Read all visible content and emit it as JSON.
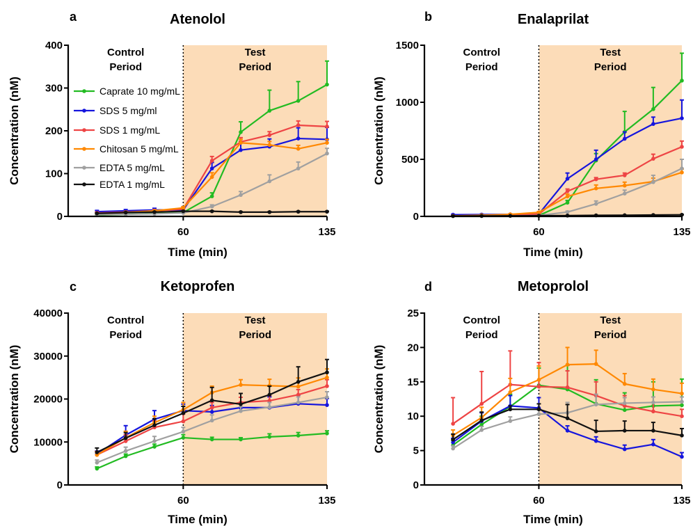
{
  "figure": {
    "x_label": "Time (min)",
    "y_label": "Concentration (nM)",
    "control_label": [
      "Control",
      "Period"
    ],
    "test_label": [
      "Test",
      "Period"
    ],
    "test_period_color": "#fcdcb8",
    "divider_x": 60
  },
  "series_styles": [
    {
      "name": "Caprate 10 mg/mL",
      "color": "#22bb22"
    },
    {
      "name": "SDS 5 mg/ml",
      "color": "#1515dd"
    },
    {
      "name": "SDS 1 mg/mL",
      "color": "#ee4444"
    },
    {
      "name": "Chitosan 5 mg/mL",
      "color": "#ff8800"
    },
    {
      "name": "EDTA 5 mg/mL",
      "color": "#a0a0a0"
    },
    {
      "name": "EDTA 1 mg/mL",
      "color": "#111111"
    }
  ],
  "chart_data": [
    {
      "type": "line",
      "letter": "a",
      "title": "Atenolol",
      "xlabel": "Time (min)",
      "ylabel": "Concentration (nM)",
      "xlim": [
        0,
        135
      ],
      "ylim": [
        0,
        400
      ],
      "x_ticks": [
        60,
        135
      ],
      "y_ticks": [
        0,
        100,
        200,
        300,
        400
      ],
      "show_legend": true,
      "legend_position": "top-left",
      "x": [
        15,
        30,
        45,
        60,
        75,
        90,
        105,
        120,
        135
      ],
      "series": [
        {
          "name": "Caprate 10 mg/mL",
          "values": [
            3,
            5,
            7,
            9,
            47,
            197,
            247,
            270,
            308
          ],
          "errors": [
            1,
            1,
            1,
            1,
            8,
            24,
            48,
            45,
            55
          ]
        },
        {
          "name": "SDS 5 mg/ml",
          "values": [
            11,
            13,
            15,
            15,
            112,
            155,
            163,
            182,
            180
          ],
          "errors": [
            3,
            3,
            4,
            4,
            14,
            20,
            18,
            25,
            28
          ]
        },
        {
          "name": "SDS 1 mg/mL",
          "values": [
            8,
            10,
            13,
            17,
            130,
            174,
            190,
            213,
            210
          ],
          "errors": [
            2,
            2,
            3,
            4,
            10,
            10,
            8,
            10,
            12
          ]
        },
        {
          "name": "Chitosan 5 mg/mL",
          "values": [
            6,
            9,
            13,
            20,
            92,
            172,
            167,
            158,
            172
          ],
          "errors": [
            1,
            2,
            2,
            3,
            10,
            8,
            8,
            8,
            8
          ]
        },
        {
          "name": "EDTA 5 mg/mL",
          "values": [
            4,
            5,
            6,
            8,
            23,
            50,
            82,
            112,
            147
          ],
          "errors": [
            1,
            1,
            1,
            1,
            4,
            8,
            15,
            15,
            12
          ]
        },
        {
          "name": "EDTA 1 mg/mL",
          "values": [
            7,
            9,
            10,
            12,
            12,
            10,
            10,
            11,
            11
          ],
          "errors": [
            1,
            1,
            1,
            1,
            1,
            1,
            1,
            1,
            1
          ]
        }
      ]
    },
    {
      "type": "line",
      "letter": "b",
      "title": "Enalaprilat",
      "xlabel": "Time (min)",
      "ylabel": "Concentration (nM)",
      "xlim": [
        0,
        135
      ],
      "ylim": [
        0,
        1500
      ],
      "x_ticks": [
        60,
        135
      ],
      "y_ticks": [
        0,
        500,
        1000,
        1500
      ],
      "show_legend": false,
      "x": [
        15,
        30,
        45,
        60,
        75,
        90,
        105,
        120,
        135
      ],
      "series": [
        {
          "name": "Caprate 10 mg/mL",
          "values": [
            3,
            4,
            6,
            8,
            120,
            490,
            740,
            940,
            1190
          ],
          "errors": [
            1,
            1,
            1,
            2,
            20,
            60,
            180,
            190,
            240
          ]
        },
        {
          "name": "SDS 5 mg/ml",
          "values": [
            15,
            16,
            18,
            20,
            330,
            500,
            680,
            810,
            860
          ],
          "errors": [
            3,
            3,
            3,
            4,
            50,
            80,
            60,
            60,
            160
          ]
        },
        {
          "name": "SDS 1 mg/mL",
          "values": [
            5,
            8,
            12,
            20,
            220,
            325,
            360,
            505,
            610
          ],
          "errors": [
            1,
            2,
            3,
            5,
            20,
            15,
            20,
            40,
            50
          ]
        },
        {
          "name": "Chitosan 5 mg/mL",
          "values": [
            5,
            10,
            18,
            35,
            175,
            245,
            270,
            305,
            385
          ],
          "errors": [
            1,
            2,
            4,
            8,
            20,
            30,
            30,
            30,
            30
          ]
        },
        {
          "name": "EDTA 5 mg/mL",
          "values": [
            2,
            3,
            5,
            8,
            38,
            110,
            200,
            300,
            420
          ],
          "errors": [
            1,
            1,
            1,
            2,
            8,
            25,
            30,
            60,
            80
          ]
        },
        {
          "name": "EDTA 1 mg/mL",
          "values": [
            3,
            4,
            5,
            6,
            7,
            9,
            10,
            12,
            14
          ],
          "errors": [
            1,
            1,
            1,
            1,
            1,
            1,
            1,
            1,
            2
          ]
        }
      ]
    },
    {
      "type": "line",
      "letter": "c",
      "title": "Ketoprofen",
      "xlabel": "Time (min)",
      "ylabel": "Concentration (nM)",
      "xlim": [
        0,
        135
      ],
      "ylim": [
        0,
        40000
      ],
      "x_ticks": [
        60,
        135
      ],
      "y_ticks": [
        0,
        10000,
        20000,
        30000,
        40000
      ],
      "show_legend": false,
      "x": [
        15,
        30,
        45,
        60,
        75,
        90,
        105,
        120,
        135
      ],
      "series": [
        {
          "name": "Caprate 10 mg/mL",
          "values": [
            3800,
            6700,
            8900,
            11000,
            10600,
            10600,
            11200,
            11500,
            12000
          ],
          "errors": [
            400,
            500,
            600,
            700,
            500,
            400,
            700,
            700,
            600
          ]
        },
        {
          "name": "SDS 5 mg/ml",
          "values": [
            7200,
            11600,
            15300,
            17300,
            17000,
            18000,
            18000,
            18900,
            18600
          ],
          "errors": [
            700,
            2200,
            2000,
            1500,
            1500,
            1200,
            2500,
            2000,
            1500
          ]
        },
        {
          "name": "SDS 1 mg/mL",
          "values": [
            7000,
            10200,
            13400,
            14800,
            18000,
            19200,
            19600,
            21000,
            23000
          ],
          "errors": [
            800,
            1500,
            1500,
            1700,
            1200,
            1200,
            1200,
            1200,
            1500
          ]
        },
        {
          "name": "Chitosan 5 mg/mL",
          "values": [
            7000,
            11000,
            14500,
            17500,
            21500,
            23300,
            23100,
            22900,
            25000
          ],
          "errors": [
            700,
            1500,
            1500,
            1700,
            1500,
            1200,
            1500,
            2000,
            2000
          ]
        },
        {
          "name": "EDTA 5 mg/mL",
          "values": [
            5200,
            7900,
            10200,
            12400,
            15000,
            17200,
            18100,
            19200,
            20400
          ],
          "errors": [
            600,
            900,
            1100,
            1000,
            1300,
            1000,
            1100,
            1300,
            1300
          ]
        },
        {
          "name": "EDTA 1 mg/mL",
          "values": [
            7600,
            10900,
            13900,
            16700,
            19700,
            18800,
            21000,
            24000,
            26200
          ],
          "errors": [
            1000,
            1300,
            1500,
            1600,
            3000,
            2500,
            2000,
            3500,
            3000
          ]
        }
      ]
    },
    {
      "type": "line",
      "letter": "d",
      "title": "Metoprolol",
      "xlabel": "Time (min)",
      "ylabel": "Concentration (nM)",
      "xlim": [
        0,
        135
      ],
      "ylim": [
        0,
        25
      ],
      "x_ticks": [
        60,
        135
      ],
      "y_ticks": [
        0,
        5,
        10,
        15,
        20,
        25
      ],
      "show_legend": false,
      "x": [
        15,
        30,
        45,
        60,
        75,
        90,
        105,
        120,
        135
      ],
      "series": [
        {
          "name": "Caprate 10 mg/mL",
          "values": [
            5.8,
            8.8,
            11.4,
            14.5,
            13.9,
            11.8,
            10.9,
            11.5,
            11.6
          ],
          "errors": [
            0.7,
            1.2,
            1.8,
            2.5,
            3.5,
            3.5,
            2.5,
            3.5,
            3.8
          ]
        },
        {
          "name": "SDS 5 mg/ml",
          "values": [
            6.2,
            9.3,
            11.5,
            11.2,
            7.9,
            6.4,
            5.2,
            5.9,
            4.1
          ],
          "errors": [
            0.6,
            1.2,
            1.5,
            1.5,
            0.7,
            0.6,
            0.6,
            0.7,
            0.6
          ]
        },
        {
          "name": "SDS 1 mg/mL",
          "values": [
            8.9,
            11.8,
            14.6,
            14.3,
            14.2,
            13.0,
            11.5,
            10.7,
            10.0
          ],
          "errors": [
            3.8,
            4.7,
            4.9,
            3.5,
            2.4,
            2.0,
            1.5,
            1.3,
            1.0
          ]
        },
        {
          "name": "Chitosan 5 mg/mL",
          "values": [
            7.2,
            9.8,
            13.5,
            15.3,
            17.5,
            17.6,
            14.7,
            13.9,
            13.3
          ],
          "errors": [
            0.8,
            1.5,
            2.0,
            2.0,
            2.5,
            2.0,
            1.5,
            1.5,
            1.5
          ]
        },
        {
          "name": "EDTA 5 mg/mL",
          "values": [
            5.3,
            8.0,
            9.3,
            10.3,
            10.5,
            11.7,
            11.9,
            12.0,
            12.1
          ],
          "errors": [
            0.4,
            0.5,
            0.6,
            0.6,
            1.5,
            1.5,
            0.8,
            0.8,
            0.7
          ]
        },
        {
          "name": "EDTA 1 mg/mL",
          "values": [
            6.6,
            9.4,
            11.0,
            11.0,
            9.7,
            7.8,
            7.9,
            7.9,
            7.2
          ],
          "errors": [
            0.8,
            1.2,
            0.5,
            0.8,
            2.0,
            1.6,
            1.4,
            1.2,
            1.0
          ]
        }
      ]
    }
  ]
}
